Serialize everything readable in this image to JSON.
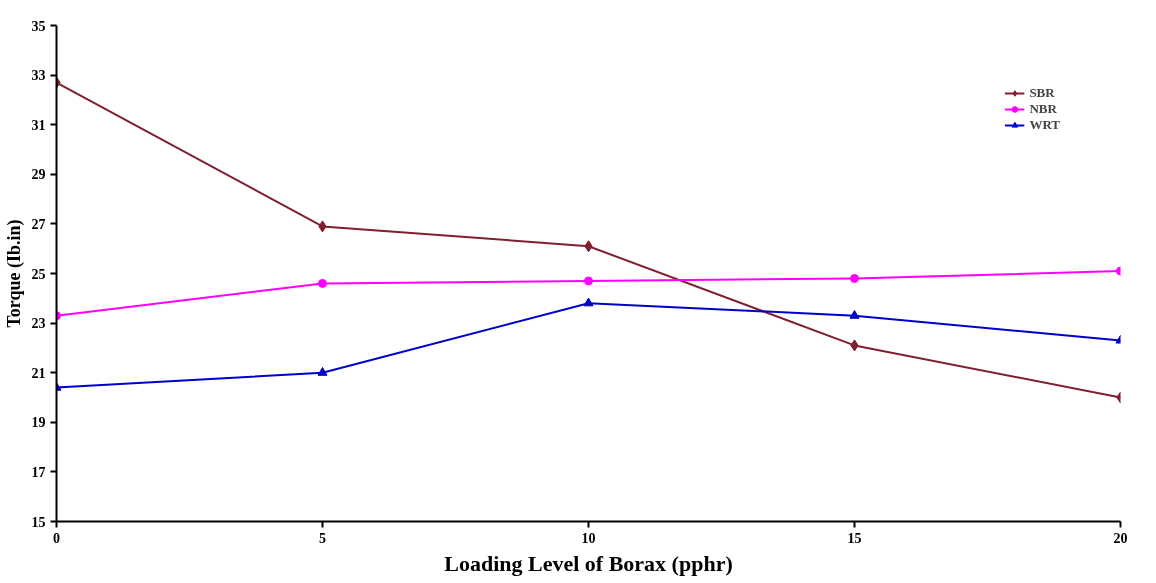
{
  "chart_data": {
    "type": "line",
    "xlabel": "Loading Level of Borax (pphr)",
    "ylabel": "Torque (Ib.in)",
    "x": [
      0,
      5,
      10,
      15,
      20
    ],
    "series": [
      {
        "name": "SBR",
        "color": "#7f1f2f",
        "marker": "diamond",
        "values": [
          32.7,
          26.9,
          26.1,
          22.1,
          20.0
        ]
      },
      {
        "name": "NBR",
        "color": "#ff00ff",
        "marker": "circle",
        "values": [
          23.3,
          24.6,
          24.7,
          24.8,
          25.1
        ]
      },
      {
        "name": "WRT",
        "color": "#0000cc",
        "marker": "triangle",
        "values": [
          20.4,
          21.0,
          23.8,
          23.3,
          22.3
        ]
      }
    ],
    "xlim": [
      0,
      20
    ],
    "xticks": [
      0,
      5,
      10,
      15,
      20
    ],
    "ylim": [
      15,
      35
    ],
    "yticks": [
      15,
      17,
      19,
      21,
      23,
      25,
      27,
      29,
      31,
      33,
      35
    ],
    "grid": false,
    "legend": "top right",
    "line_style": "solid"
  }
}
